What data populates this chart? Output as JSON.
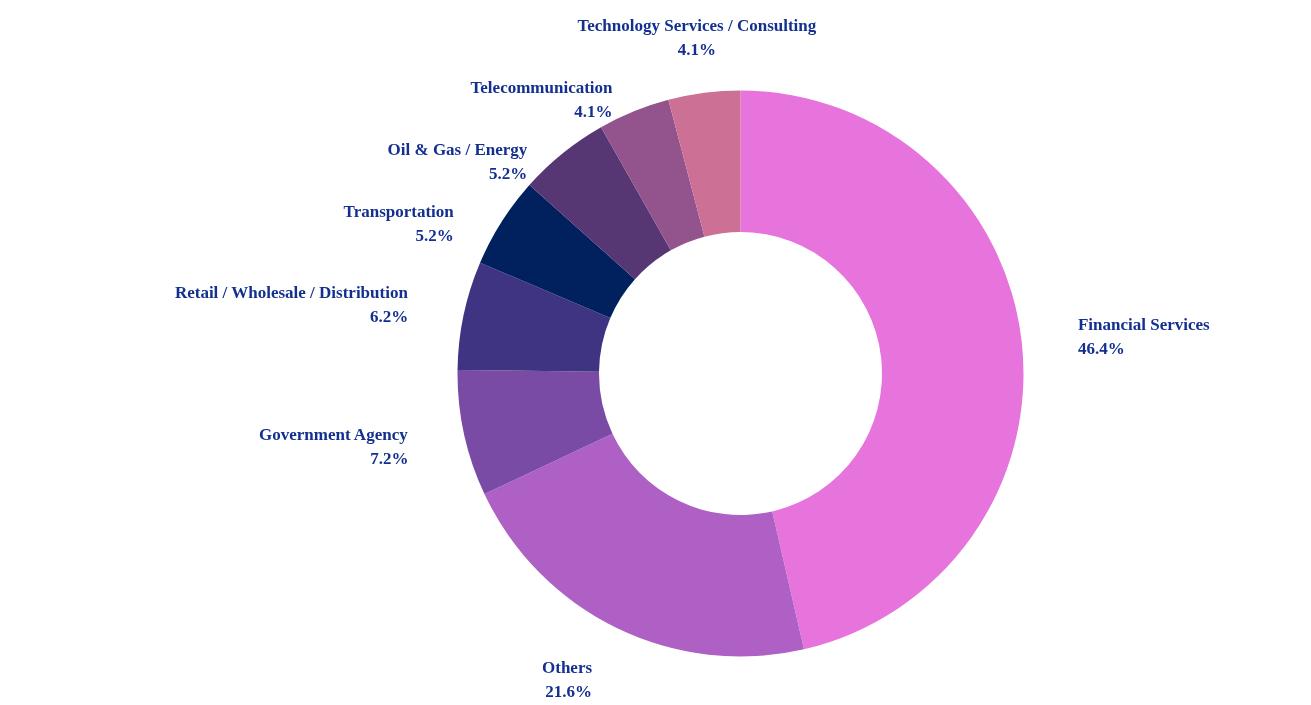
{
  "chart_data": {
    "type": "donut",
    "categories": [
      "Financial Services",
      "Others",
      "Government Agency",
      "Retail / Wholesale / Distribution",
      "Transportation",
      "Oil & Gas / Energy",
      "Telecommunication",
      "Technology Services / Consulting"
    ],
    "values": [
      46.4,
      21.6,
      7.2,
      6.2,
      5.2,
      5.2,
      4.1,
      4.1
    ],
    "colors": [
      "#e773dd",
      "#ae60c4",
      "#7a4ba5",
      "#3f3482",
      "#00215e",
      "#563673",
      "#93538c",
      "#cc7096"
    ],
    "value_labels": [
      "46.4%",
      "21.6%",
      "7.2%",
      "6.2%",
      "5.2%",
      "5.2%",
      "4.1%",
      "4.1%"
    ]
  }
}
